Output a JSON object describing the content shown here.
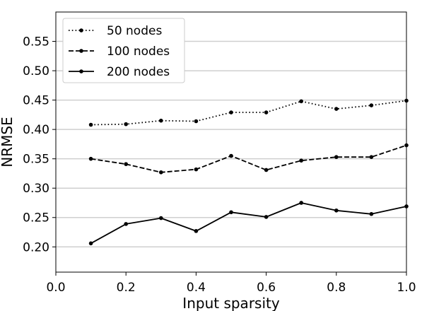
{
  "chart_data": {
    "type": "line",
    "xlabel": "Input sparsity",
    "ylabel": "NRMSE",
    "xlim": [
      0.0,
      1.0
    ],
    "ylim": [
      0.157,
      0.6
    ],
    "xticks": [
      "0.0",
      "0.2",
      "0.4",
      "0.6",
      "0.8",
      "1.0"
    ],
    "yticks": [
      "0.20",
      "0.25",
      "0.30",
      "0.35",
      "0.40",
      "0.45",
      "0.50",
      "0.55"
    ],
    "grid": "horizontal",
    "legend_position": "top-left",
    "x": [
      0.1,
      0.2,
      0.3,
      0.4,
      0.5,
      0.6,
      0.7,
      0.8,
      0.9,
      1.0
    ],
    "series": [
      {
        "name": "50 nodes",
        "style": "dotted",
        "values": [
          0.408,
          0.409,
          0.415,
          0.414,
          0.429,
          0.429,
          0.448,
          0.435,
          0.441,
          0.449
        ]
      },
      {
        "name": "100 nodes",
        "style": "dashed",
        "values": [
          0.35,
          0.341,
          0.327,
          0.332,
          0.355,
          0.331,
          0.347,
          0.353,
          0.353,
          0.373
        ]
      },
      {
        "name": "200 nodes",
        "style": "solid",
        "values": [
          0.206,
          0.239,
          0.249,
          0.227,
          0.259,
          0.251,
          0.275,
          0.262,
          0.256,
          0.269
        ]
      }
    ]
  }
}
